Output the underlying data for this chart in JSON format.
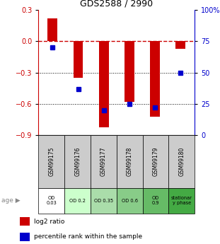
{
  "title": "GDS2588 / 2990",
  "samples": [
    "GSM99175",
    "GSM99176",
    "GSM99177",
    "GSM99178",
    "GSM99179",
    "GSM99180"
  ],
  "log2_ratios": [
    0.22,
    -0.35,
    -0.82,
    -0.58,
    -0.72,
    -0.07
  ],
  "percentile_ranks": [
    70,
    37,
    20,
    25,
    22,
    50
  ],
  "ylim_left": [
    -0.9,
    0.3
  ],
  "ylim_right": [
    0,
    100
  ],
  "yticks_left": [
    -0.9,
    -0.6,
    -0.3,
    0.0,
    0.3
  ],
  "yticks_right": [
    0,
    25,
    50,
    75,
    100
  ],
  "bar_color": "#cc0000",
  "dot_color": "#0000cc",
  "dotted_line_y": [
    -0.3,
    -0.6
  ],
  "zero_line_color": "#cc0000",
  "age_labels": [
    "OD\n0.03",
    "OD 0.2",
    "OD 0.35",
    "OD 0.6",
    "OD\n0.9",
    "stationar\ny phase"
  ],
  "age_bg_colors": [
    "#ffffff",
    "#ccffcc",
    "#aaddaa",
    "#88cc88",
    "#66bb66",
    "#44aa44"
  ],
  "sample_bg_color": "#cccccc",
  "legend_items": [
    "log2 ratio",
    "percentile rank within the sample"
  ]
}
